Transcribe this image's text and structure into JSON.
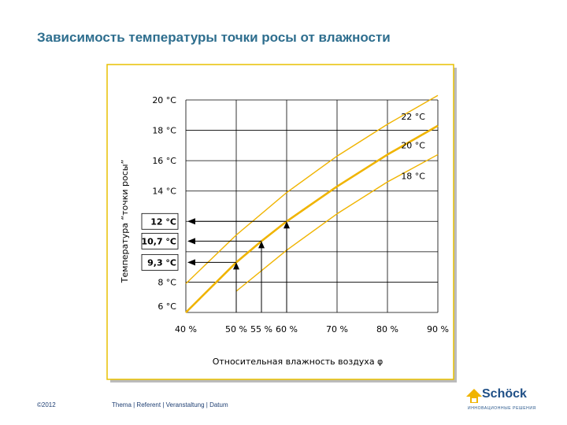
{
  "slide": {
    "title": "Зависимость температуры точки росы от влажности",
    "footer_left": "©2012",
    "footer_center": "Thema | Referent | Veranstaltung | Datum",
    "logo_text": "Schöck",
    "logo_sub": "ИННОВАЦИОННЫЕ РЕШЕНИЯ"
  },
  "colors": {
    "curve": "#f0b400",
    "grid": "#000000",
    "frame_border": "#e8c000",
    "frame_shadow": "#bbbbbb"
  },
  "chart_data": {
    "type": "line",
    "title": "",
    "xlabel": "Относительная влажность воздуха φ",
    "ylabel": "Температура “точки росы”",
    "xlim": [
      40,
      90
    ],
    "ylim": [
      6,
      20
    ],
    "x_ticks": [
      "40 %",
      "50 %",
      "55 %",
      "60 %",
      "70 %",
      "80 %",
      "90 %"
    ],
    "y_ticks": [
      "6 °C",
      "8 °C",
      "14 °C",
      "16 °C",
      "18 °C",
      "20 °C"
    ],
    "y_ticks_boxed": [
      "9,3 °C",
      "10,7 °C",
      "12 °C"
    ],
    "grid": true,
    "series": [
      {
        "name": "22 °C",
        "x": [
          40,
          50,
          60,
          70,
          80,
          90
        ],
        "y": [
          7.9,
          11.1,
          13.9,
          16.3,
          18.4,
          20.3
        ]
      },
      {
        "name": "20 °C",
        "x": [
          40,
          50,
          55,
          60,
          70,
          80,
          90
        ],
        "y": [
          6.0,
          9.3,
          10.7,
          12.0,
          14.3,
          16.4,
          18.3
        ]
      },
      {
        "name": "18 °C",
        "x": [
          50,
          60,
          70,
          80,
          90
        ],
        "y": [
          7.4,
          10.1,
          12.5,
          14.6,
          16.4
        ]
      }
    ],
    "annotations": [
      {
        "x": 50,
        "y": 9.3,
        "label": "9,3 °C"
      },
      {
        "x": 55,
        "y": 10.7,
        "label": "10,7 °C"
      },
      {
        "x": 60,
        "y": 12.0,
        "label": "12 °C"
      }
    ]
  }
}
